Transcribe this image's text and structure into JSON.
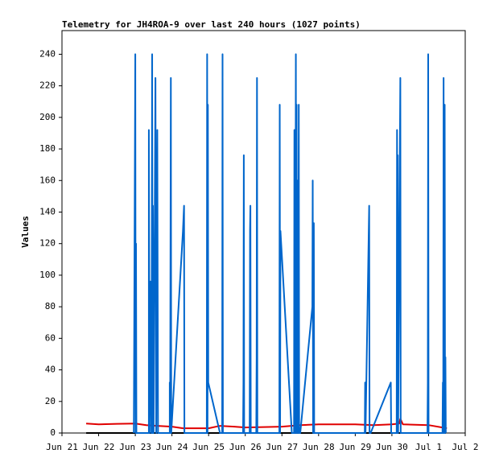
{
  "chart_data": {
    "type": "line",
    "title": "Telemetry for JH4ROA-9 over last 240 hours (1027 points)",
    "y_label": "Values",
    "xlim": [
      0,
      11
    ],
    "xticks": [
      {
        "value": 0,
        "label": "Jun 21"
      },
      {
        "value": 1,
        "label": "Jun 22"
      },
      {
        "value": 2,
        "label": "Jun 23"
      },
      {
        "value": 3,
        "label": "Jun 24"
      },
      {
        "value": 4,
        "label": "Jun 25"
      },
      {
        "value": 5,
        "label": "Jun 26"
      },
      {
        "value": 6,
        "label": "Jun 27"
      },
      {
        "value": 7,
        "label": "Jun 28"
      },
      {
        "value": 8,
        "label": "Jun 29"
      },
      {
        "value": 9,
        "label": "Jun 30"
      },
      {
        "value": 10,
        "label": "Jul 1"
      },
      {
        "value": 11,
        "label": "Jul 2"
      }
    ],
    "ylim": [
      0,
      255
    ],
    "yticks": [
      0,
      20,
      40,
      60,
      80,
      100,
      120,
      140,
      160,
      180,
      200,
      220,
      240
    ],
    "grid": false,
    "series": [
      {
        "color": "#000000",
        "x": [
          0.66,
          10.47
        ],
        "values": [
          0,
          0
        ]
      },
      {
        "color": "#e00000",
        "x": [
          0.66,
          1.0,
          1.5,
          2.0,
          2.3,
          2.6,
          3.0,
          3.3,
          4.0,
          4.3,
          4.7,
          5.0,
          6.0,
          6.5,
          7.0,
          8.0,
          8.5,
          9.0,
          9.2,
          9.23,
          9.3,
          10.0,
          10.5
        ],
        "values": [
          6,
          5.5,
          5.8,
          6,
          5,
          4.5,
          4,
          3,
          3,
          4.5,
          4,
          3.5,
          4,
          5,
          5.5,
          5.5,
          5,
          5.5,
          6,
          9,
          5.5,
          5,
          3
        ]
      },
      {
        "color": "#0066cc",
        "x": [
          1.96,
          2.0,
          2.01,
          2.02,
          2.03,
          2.37,
          2.37,
          2.39,
          2.41,
          2.44,
          2.46,
          2.47,
          2.48,
          2.5,
          2.55,
          2.57,
          2.6,
          2.62,
          2.94,
          2.94,
          2.95,
          2.97,
          2.98,
          3.3,
          3.33,
          3.34,
          3.95,
          3.96,
          3.97,
          3.98,
          3.99,
          4.31,
          4.37,
          4.38,
          4.39,
          4.94,
          4.95,
          4.96,
          4.97,
          5.12,
          5.13,
          5.14,
          5.15,
          5.3,
          5.31,
          5.32,
          5.33,
          5.93,
          5.94,
          5.95,
          5.96,
          6.27,
          6.33,
          6.34,
          6.36,
          6.38,
          6.39,
          6.4,
          6.41,
          6.43,
          6.44,
          6.46,
          6.47,
          6.5,
          6.83,
          6.84,
          6.85,
          6.87,
          6.88,
          8.26,
          8.27,
          8.28,
          8.38,
          8.39,
          8.42,
          8.97,
          8.98,
          9.13,
          9.14,
          9.15,
          9.16,
          9.17,
          9.23,
          9.24,
          9.97,
          9.98,
          9.99,
          10.0,
          10.38,
          10.39,
          10.4,
          10.41,
          10.42,
          10.44,
          10.45,
          10.46,
          10.47
        ],
        "values": [
          0,
          240,
          0,
          120,
          0,
          0,
          192,
          0,
          96,
          0,
          240,
          0,
          144,
          0,
          225,
          0,
          192,
          0,
          0,
          32,
          0,
          225,
          0,
          128,
          144,
          0,
          0,
          240,
          0,
          208,
          32,
          0,
          0,
          240,
          0,
          0,
          32,
          176,
          0,
          0,
          128,
          144,
          0,
          0,
          48,
          225,
          0,
          0,
          208,
          0,
          128,
          0,
          0,
          192,
          0,
          240,
          0,
          208,
          0,
          160,
          0,
          208,
          0,
          0,
          80,
          160,
          0,
          133,
          0,
          0,
          32,
          0,
          144,
          0,
          0,
          32,
          0,
          0,
          192,
          0,
          176,
          0,
          225,
          0,
          0,
          32,
          240,
          0,
          0,
          32,
          0,
          225,
          0,
          208,
          0,
          48,
          0
        ]
      }
    ]
  }
}
